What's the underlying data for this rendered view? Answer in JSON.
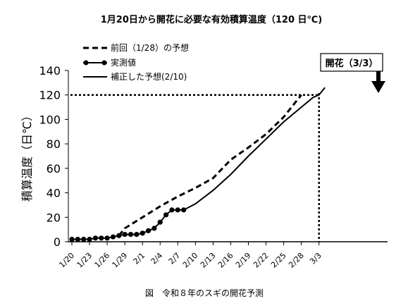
{
  "chart_data": {
    "type": "line",
    "title": "1月20日から開花に必要な有効積算温度（120 日℃)",
    "ylabel": "積算温度（日℃）",
    "xlabel": "",
    "caption": "図　令和８年のスギの開花予測",
    "ylim": [
      0,
      140
    ],
    "yticks": [
      0,
      20,
      40,
      60,
      80,
      100,
      120,
      140
    ],
    "x_unit": "days since 1/20",
    "xticks": [
      {
        "label": "1/20",
        "day": 0
      },
      {
        "label": "1/23",
        "day": 3
      },
      {
        "label": "1/26",
        "day": 6
      },
      {
        "label": "1/29",
        "day": 9
      },
      {
        "label": "2/1",
        "day": 12
      },
      {
        "label": "2/4",
        "day": 15
      },
      {
        "label": "2/7",
        "day": 18
      },
      {
        "label": "2/10",
        "day": 21
      },
      {
        "label": "2/13",
        "day": 24
      },
      {
        "label": "2/16",
        "day": 27
      },
      {
        "label": "2/19",
        "day": 30
      },
      {
        "label": "2/22",
        "day": 33
      },
      {
        "label": "2/25",
        "day": 36
      },
      {
        "label": "2/28",
        "day": 39
      },
      {
        "label": "3/3",
        "day": 42
      }
    ],
    "threshold": 120,
    "legend_position": "top-left",
    "series": [
      {
        "name": "前回（1/28）の予想",
        "style": "dashed",
        "x": [
          8,
          9,
          12,
          15,
          18,
          21,
          24,
          27,
          30,
          33,
          36,
          38,
          39
        ],
        "y": [
          5,
          11,
          20,
          29,
          37,
          44,
          52,
          67,
          77,
          88,
          102,
          114,
          120
        ]
      },
      {
        "name": "実測値",
        "style": "markers",
        "x": [
          0,
          1,
          2,
          3,
          4,
          5,
          6,
          7,
          8,
          9,
          10,
          11,
          12,
          13,
          14,
          15,
          16,
          17,
          18,
          19
        ],
        "y": [
          2,
          2,
          2,
          2,
          3,
          3,
          3,
          4,
          5,
          6,
          6,
          6,
          7,
          9,
          11,
          16,
          22,
          26,
          26,
          26
        ]
      },
      {
        "name": "補正した予想(2/10)",
        "style": "solid",
        "x": [
          19,
          21,
          24,
          27,
          30,
          33,
          36,
          39,
          41,
          42,
          43
        ],
        "y": [
          26,
          31,
          42,
          55,
          70,
          84,
          98,
          110,
          118,
          120,
          126
        ]
      }
    ],
    "callout": {
      "label": "開花（3/3）",
      "day": 42
    }
  }
}
